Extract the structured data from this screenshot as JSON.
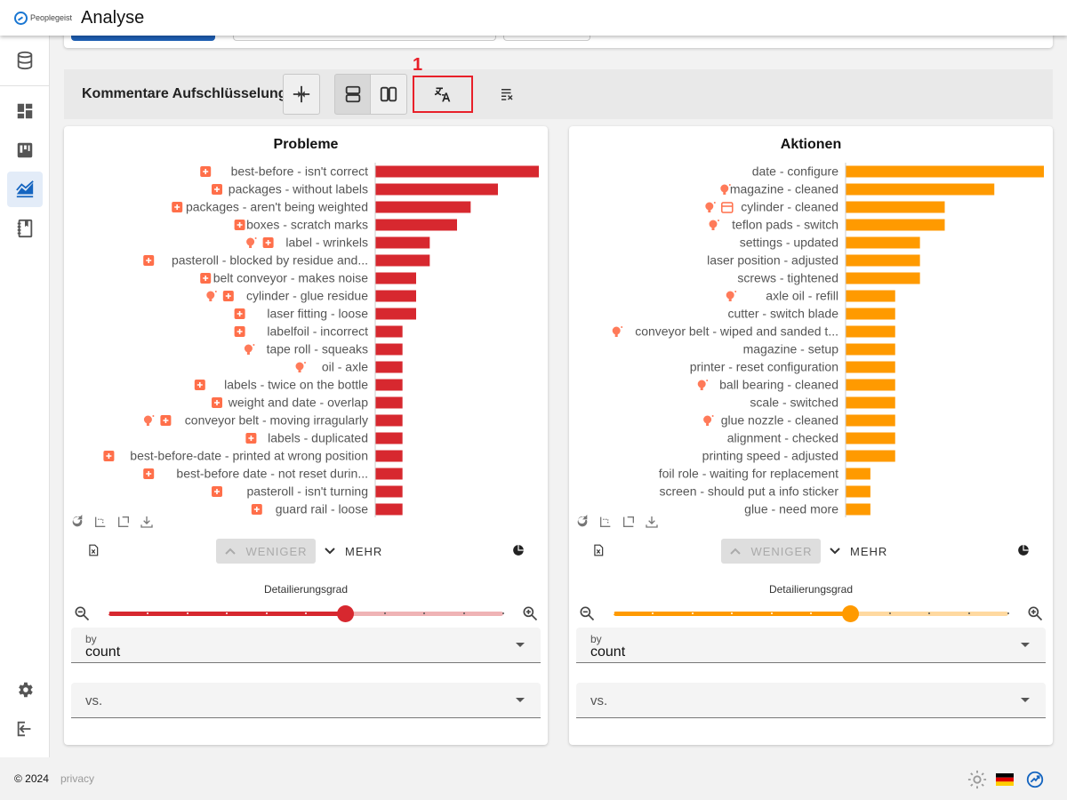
{
  "header": {
    "logo_text": "Peoplegeist",
    "title": "Analyse"
  },
  "sidebar": {
    "items": [
      {
        "name": "database-icon"
      },
      {
        "name": "dashboard-icon"
      },
      {
        "name": "board-icon"
      },
      {
        "name": "analysis-icon",
        "active": true
      },
      {
        "name": "notebook-icon"
      }
    ],
    "bottom": [
      {
        "name": "gear-icon"
      },
      {
        "name": "logout-icon"
      }
    ]
  },
  "toolbar": {
    "title": "Kommentare Aufschlüsselung",
    "marker": "1",
    "buttons": [
      "split-view-icon",
      "rows-layout-icon",
      "columns-layout-icon",
      "translate-icon",
      "clear-list-icon"
    ]
  },
  "left_card": {
    "title": "Probleme",
    "color": "#d7282f",
    "slider_color": "#d7282f",
    "slider_track_color": "#efb3b5",
    "slider_value": 0.6,
    "less_label": "WENIGER",
    "more_label": "MEHR",
    "slider_label": "Detailierungsgrad",
    "by_label": "by",
    "by_value": "count",
    "vs_placeholder": "vs."
  },
  "right_card": {
    "title": "Aktionen",
    "color": "#ff9a00",
    "slider_color": "#ff9a00",
    "slider_track_color": "#ffd9a0",
    "slider_value": 0.6,
    "less_label": "WENIGER",
    "more_label": "MEHR",
    "slider_label": "Detailierungsgrad",
    "by_label": "by",
    "by_value": "count",
    "vs_placeholder": "vs."
  },
  "chart_data": [
    {
      "type": "bar",
      "orientation": "horizontal",
      "title": "Probleme",
      "xlim": [
        0,
        12
      ],
      "xticks": [
        0,
        2,
        4,
        6,
        8,
        10,
        12
      ],
      "categories": [
        "best-before - isn't correct",
        "packages - without labels",
        "packages - aren't being weighted",
        "boxes - scratch marks",
        "label - wrinkels",
        "pasteroll - blocked by residue and...",
        "belt conveyor - makes noise",
        "cylinder - glue residue",
        "laser fitting - loose",
        "labelfoil - incorrect",
        "tape roll - squeaks",
        "oil - axle",
        "labels - twice on the bottle",
        "weight and date - overlap",
        "conveyor belt - moving irragularly",
        "labels - duplicated",
        "best-before-date - printed at wrong position",
        "best-before date - not reset durin...",
        "pasteroll - isn't turning",
        "guard rail - loose"
      ],
      "values": [
        12,
        9,
        7,
        6,
        4,
        4,
        3,
        3,
        3,
        2,
        2,
        2,
        2,
        2,
        2,
        2,
        2,
        2,
        2,
        2
      ],
      "icons": [
        [
          "plus"
        ],
        [
          "plus"
        ],
        [
          "plus"
        ],
        [
          "plus"
        ],
        [
          "bulb",
          "plus"
        ],
        [
          "plus"
        ],
        [
          "plus"
        ],
        [
          "bulb",
          "plus"
        ],
        [
          "plus"
        ],
        [
          "plus"
        ],
        [
          "bulb"
        ],
        [
          "bulb"
        ],
        [
          "plus"
        ],
        [
          "plus"
        ],
        [
          "bulb",
          "plus"
        ],
        [
          "plus"
        ],
        [
          "plus"
        ],
        [
          "plus"
        ],
        [
          "plus"
        ],
        [
          "plus"
        ]
      ]
    },
    {
      "type": "bar",
      "orientation": "horizontal",
      "title": "Aktionen",
      "xlim": [
        0,
        8
      ],
      "xticks": [
        0,
        2,
        4,
        6,
        8
      ],
      "categories": [
        "date - configure",
        "magazine - cleaned",
        "cylinder - cleaned",
        "teflon pads - switch",
        "settings - updated",
        "laser position - adjusted",
        "screws - tightened",
        "axle oil - refill",
        "cutter - switch blade",
        "conveyor belt - wiped and sanded t...",
        "magazine - setup",
        "printer - reset configuration",
        "ball bearing - cleaned",
        "scale - switched",
        "glue nozzle - cleaned",
        "alignment - checked",
        "printing speed - adjusted",
        "foil role - waiting for replacement",
        "screen - should put a info sticker",
        "glue - need more"
      ],
      "values": [
        8,
        6,
        4,
        4,
        3,
        3,
        3,
        2,
        2,
        2,
        2,
        2,
        2,
        2,
        2,
        2,
        2,
        1,
        1,
        1
      ],
      "icons": [
        [],
        [
          "bulb"
        ],
        [
          "bulb",
          "calendar"
        ],
        [
          "bulb"
        ],
        [],
        [],
        [],
        [
          "bulb"
        ],
        [],
        [
          "bulb"
        ],
        [],
        [],
        [
          "bulb"
        ],
        [],
        [
          "bulb"
        ],
        [],
        [],
        [],
        [],
        []
      ]
    }
  ],
  "footer": {
    "copyright": "© 2024",
    "privacy": "privacy"
  }
}
